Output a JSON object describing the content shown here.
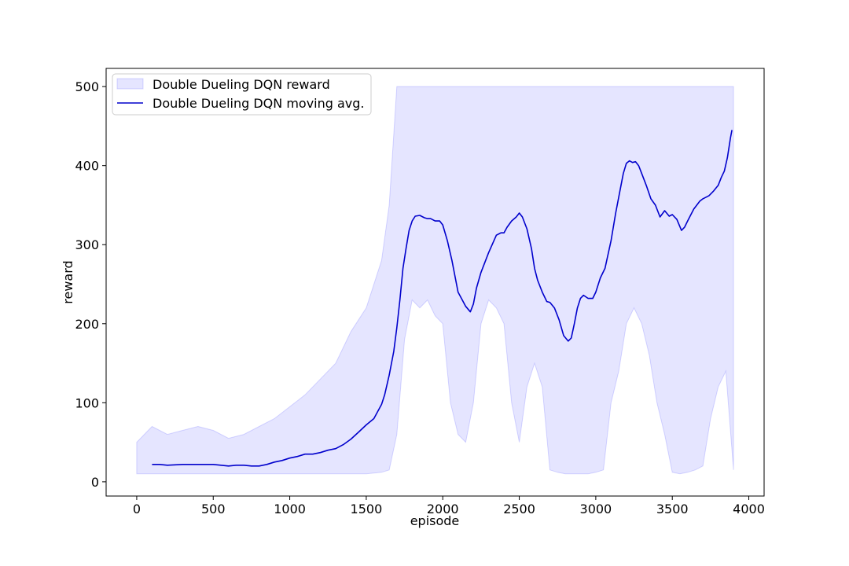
{
  "chart_data": {
    "type": "line",
    "title": "",
    "xlabel": "episode",
    "ylabel": "reward",
    "xlim": [
      -200,
      4100
    ],
    "ylim": [
      -18,
      523
    ],
    "xticks": [
      0,
      500,
      1000,
      1500,
      2000,
      2500,
      3000,
      3500,
      4000
    ],
    "yticks": [
      0,
      100,
      200,
      300,
      400,
      500
    ],
    "legend_position": "top-left",
    "series": [
      {
        "name": "Double Dueling DQN reward",
        "kind": "band",
        "color": "#0000ff",
        "alpha": 0.1,
        "x": [
          0,
          100,
          200,
          300,
          400,
          500,
          600,
          700,
          800,
          900,
          1000,
          1100,
          1200,
          1300,
          1400,
          1500,
          1600,
          1650,
          1700,
          1750,
          1800,
          1850,
          1900,
          1950,
          2000,
          2050,
          2100,
          2150,
          2200,
          2250,
          2300,
          2350,
          2400,
          2450,
          2500,
          2550,
          2600,
          2650,
          2700,
          2750,
          2800,
          2850,
          2900,
          2950,
          3000,
          3050,
          3100,
          3150,
          3200,
          3250,
          3300,
          3350,
          3400,
          3450,
          3500,
          3550,
          3600,
          3650,
          3700,
          3750,
          3800,
          3850,
          3900
        ],
        "lower": [
          10,
          10,
          10,
          10,
          10,
          10,
          10,
          10,
          10,
          10,
          10,
          10,
          10,
          10,
          10,
          10,
          12,
          15,
          60,
          180,
          230,
          220,
          230,
          210,
          200,
          100,
          60,
          50,
          100,
          200,
          230,
          220,
          200,
          100,
          50,
          120,
          150,
          120,
          15,
          12,
          10,
          10,
          10,
          10,
          12,
          15,
          100,
          140,
          200,
          220,
          200,
          160,
          100,
          60,
          12,
          10,
          12,
          15,
          20,
          80,
          120,
          140,
          15
        ],
        "upper": [
          50,
          70,
          60,
          65,
          70,
          65,
          55,
          60,
          70,
          80,
          95,
          110,
          130,
          150,
          190,
          220,
          280,
          350,
          500,
          500,
          500,
          500,
          500,
          500,
          500,
          500,
          500,
          500,
          500,
          500,
          500,
          500,
          500,
          500,
          500,
          500,
          500,
          500,
          500,
          500,
          500,
          500,
          500,
          500,
          500,
          500,
          500,
          500,
          500,
          500,
          500,
          500,
          500,
          500,
          500,
          500,
          500,
          500,
          500,
          500,
          500,
          500,
          500
        ]
      },
      {
        "name": "Double Dueling DQN moving avg.",
        "kind": "line",
        "color": "#0000cc",
        "x": [
          100,
          150,
          200,
          300,
          400,
          500,
          550,
          600,
          650,
          700,
          750,
          800,
          850,
          900,
          950,
          1000,
          1050,
          1100,
          1150,
          1200,
          1250,
          1300,
          1350,
          1400,
          1450,
          1500,
          1550,
          1600,
          1620,
          1650,
          1680,
          1700,
          1720,
          1740,
          1760,
          1780,
          1800,
          1820,
          1850,
          1880,
          1900,
          1920,
          1950,
          1980,
          2000,
          2030,
          2060,
          2100,
          2150,
          2180,
          2200,
          2220,
          2250,
          2300,
          2350,
          2380,
          2400,
          2420,
          2450,
          2480,
          2500,
          2520,
          2550,
          2580,
          2600,
          2620,
          2650,
          2680,
          2700,
          2730,
          2760,
          2790,
          2820,
          2840,
          2860,
          2880,
          2900,
          2920,
          2950,
          2980,
          3000,
          3030,
          3060,
          3100,
          3130,
          3160,
          3180,
          3200,
          3220,
          3240,
          3260,
          3280,
          3300,
          3330,
          3360,
          3390,
          3420,
          3450,
          3480,
          3500,
          3530,
          3560,
          3580,
          3600,
          3640,
          3680,
          3700,
          3740,
          3770,
          3800,
          3820,
          3840,
          3860,
          3880,
          3890
        ],
        "values": [
          22,
          22,
          21,
          22,
          22,
          22,
          21,
          20,
          21,
          21,
          20,
          20,
          22,
          25,
          27,
          30,
          32,
          35,
          35,
          37,
          40,
          42,
          47,
          54,
          63,
          72,
          80,
          98,
          110,
          135,
          165,
          195,
          230,
          270,
          295,
          318,
          330,
          336,
          337,
          334,
          333,
          333,
          330,
          330,
          325,
          305,
          280,
          240,
          222,
          215,
          225,
          245,
          265,
          290,
          312,
          315,
          315,
          322,
          330,
          335,
          340,
          335,
          320,
          295,
          270,
          255,
          240,
          228,
          227,
          220,
          205,
          185,
          178,
          182,
          200,
          220,
          232,
          236,
          232,
          232,
          240,
          258,
          270,
          305,
          340,
          370,
          390,
          403,
          406,
          404,
          405,
          400,
          390,
          375,
          358,
          350,
          335,
          343,
          336,
          338,
          332,
          318,
          322,
          330,
          345,
          355,
          358,
          362,
          368,
          375,
          385,
          393,
          410,
          435,
          445
        ]
      }
    ]
  },
  "legend": {
    "items": [
      {
        "label": "Double Dueling DQN reward",
        "swatch": "band"
      },
      {
        "label": "Double Dueling DQN moving avg.",
        "swatch": "line"
      }
    ]
  }
}
